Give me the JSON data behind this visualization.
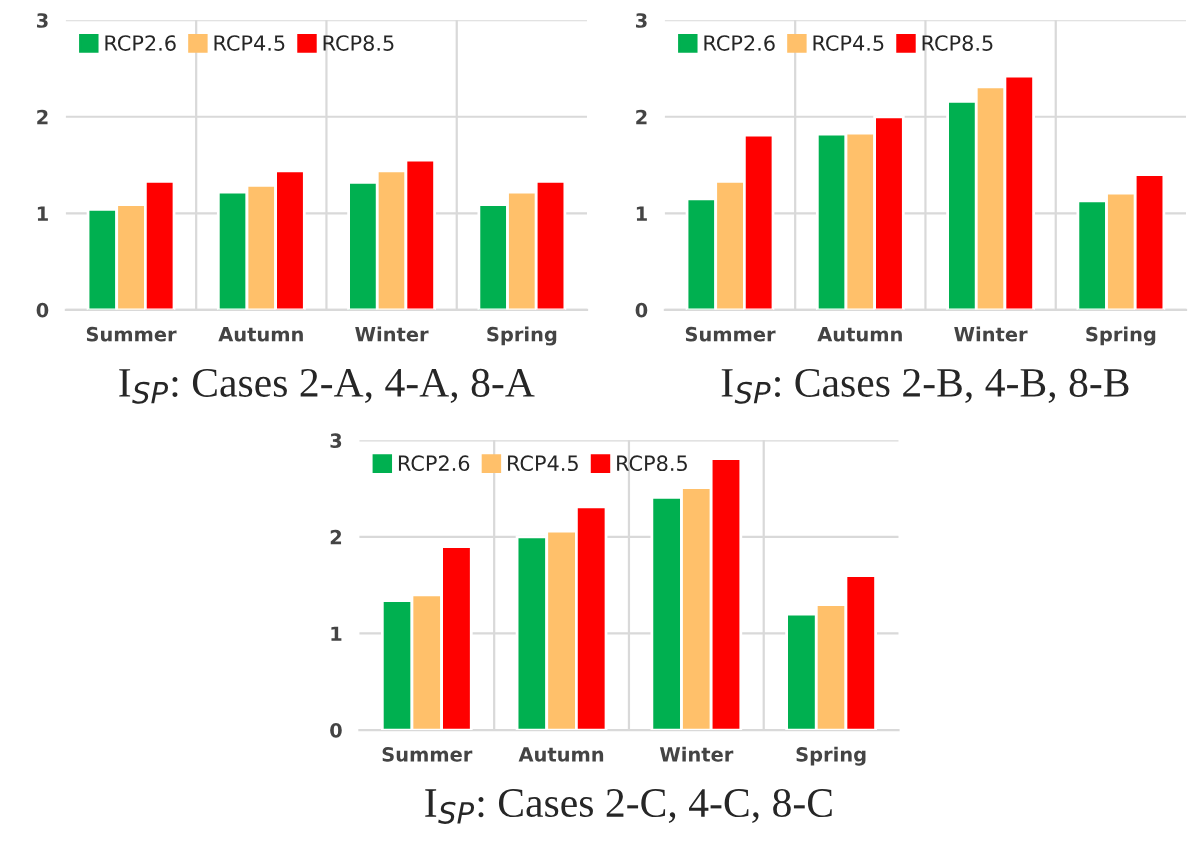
{
  "chart_data": [
    {
      "type": "bar",
      "title": "I$_{SP}$: Cases 2-A, 4-A, 8-A",
      "categories": [
        "Summer",
        "Autumn",
        "Winter",
        "Spring"
      ],
      "ylim": [
        0,
        3
      ],
      "yticks": [
        0,
        1,
        2,
        3
      ],
      "grid": true,
      "legend": "top left",
      "series": [
        {
          "name": "RCP2.6",
          "color": "#00b050",
          "values": [
            1.04,
            1.22,
            1.32,
            1.09
          ]
        },
        {
          "name": "RCP4.5",
          "color": "#ffc06a",
          "values": [
            1.09,
            1.29,
            1.44,
            1.22
          ]
        },
        {
          "name": "RCP8.5",
          "color": "#ff0000",
          "values": [
            1.33,
            1.44,
            1.55,
            1.33
          ]
        }
      ]
    },
    {
      "type": "bar",
      "title": "I$_{SP}$: Cases 2-B, 4-B, 8-B",
      "categories": [
        "Summer",
        "Autumn",
        "Winter",
        "Spring"
      ],
      "ylim": [
        0,
        3
      ],
      "yticks": [
        0,
        1,
        2,
        3
      ],
      "grid": true,
      "legend": "top left",
      "series": [
        {
          "name": "RCP2.6",
          "color": "#00b050",
          "values": [
            1.15,
            1.82,
            2.16,
            1.13
          ]
        },
        {
          "name": "RCP4.5",
          "color": "#ffc06a",
          "values": [
            1.33,
            1.83,
            2.31,
            1.21
          ]
        },
        {
          "name": "RCP8.5",
          "color": "#ff0000",
          "values": [
            1.81,
            2.0,
            2.42,
            1.4
          ]
        }
      ]
    },
    {
      "type": "bar",
      "title": "I$_{SP}$: Cases 2-C, 4-C, 8-C",
      "categories": [
        "Summer",
        "Autumn",
        "Winter",
        "Spring"
      ],
      "ylim": [
        0,
        3
      ],
      "yticks": [
        0,
        1,
        2,
        3
      ],
      "grid": true,
      "legend": "top left",
      "series": [
        {
          "name": "RCP2.6",
          "color": "#00b050",
          "values": [
            1.34,
            2.0,
            2.41,
            1.2
          ]
        },
        {
          "name": "RCP4.5",
          "color": "#ffc06a",
          "values": [
            1.4,
            2.06,
            2.51,
            1.3
          ]
        },
        {
          "name": "RCP8.5",
          "color": "#ff0000",
          "values": [
            1.9,
            2.31,
            2.81,
            1.6
          ]
        }
      ]
    }
  ]
}
